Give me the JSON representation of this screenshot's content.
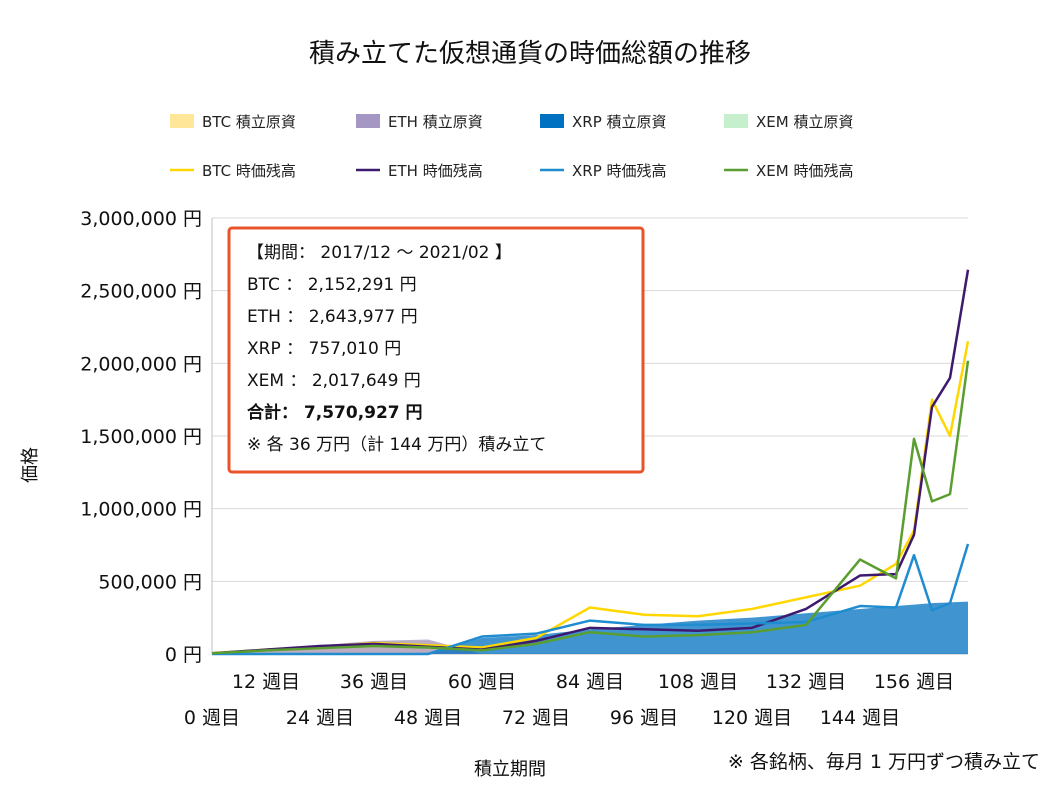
{
  "chart_data": {
    "type": "line",
    "title": "積み立てた仮想通貨の時価総額の推移",
    "xlabel": "積立期間",
    "ylabel": "価格",
    "ylim": [
      0,
      3000000
    ],
    "y_ticks": [
      "0 円",
      "500,000 円",
      "1,000,000 円",
      "1,500,000 円",
      "2,000,000 円",
      "2,500,000 円",
      "3,000,000 円"
    ],
    "x_ticks_top": [
      "12 週目",
      "36 週目",
      "60 週目",
      "84 週目",
      "108 週目",
      "132 週目",
      "156 週目"
    ],
    "x_ticks_bottom": [
      "0 週目",
      "24 週目",
      "48 週目",
      "72 週目",
      "96 週目",
      "120 週目",
      "144 週目"
    ],
    "legend_placement": "top",
    "grid": true,
    "x": [
      0,
      12,
      24,
      36,
      48,
      60,
      72,
      84,
      96,
      108,
      120,
      132,
      144,
      152,
      156,
      160,
      164,
      168
    ],
    "series": [
      {
        "name": "BTC 積立原資",
        "kind": "area",
        "color": "#ffe699",
        "values": [
          10000,
          30000,
          60000,
          90000,
          90000,
          0,
          0,
          0,
          0,
          0,
          0,
          0,
          0,
          0,
          0,
          0,
          0,
          0
        ]
      },
      {
        "name": "ETH 積立原資",
        "kind": "area",
        "color": "#a497c4",
        "values": [
          10000,
          30000,
          60000,
          90000,
          100000,
          0,
          0,
          0,
          0,
          0,
          0,
          0,
          0,
          0,
          0,
          0,
          0,
          0
        ]
      },
      {
        "name": "XRP 積立原資",
        "kind": "area",
        "color": "#0070c0",
        "values": [
          0,
          0,
          0,
          0,
          0,
          110000,
          130000,
          170000,
          200000,
          230000,
          250000,
          280000,
          310000,
          330000,
          340000,
          350000,
          355000,
          360000
        ]
      },
      {
        "name": "XEM 積立原資",
        "kind": "area",
        "color": "#c6efce",
        "values": [
          0,
          0,
          0,
          0,
          0,
          0,
          0,
          0,
          0,
          0,
          0,
          0,
          0,
          0,
          0,
          0,
          0,
          0
        ]
      },
      {
        "name": "BTC 時価残高",
        "kind": "line",
        "color": "#ffd700",
        "values": [
          5000,
          30000,
          50000,
          75000,
          60000,
          45000,
          110000,
          320000,
          270000,
          260000,
          310000,
          390000,
          470000,
          620000,
          850000,
          1750000,
          1500000,
          2152291
        ]
      },
      {
        "name": "ETH 時価残高",
        "kind": "line",
        "color": "#3d1a6e",
        "values": [
          5000,
          30000,
          55000,
          70000,
          50000,
          30000,
          90000,
          180000,
          170000,
          160000,
          180000,
          310000,
          540000,
          550000,
          820000,
          1700000,
          1900000,
          2643977
        ]
      },
      {
        "name": "XRP 時価残高",
        "kind": "line",
        "color": "#1f8ccf",
        "values": [
          0,
          0,
          0,
          0,
          0,
          120000,
          140000,
          230000,
          200000,
          200000,
          210000,
          220000,
          330000,
          320000,
          680000,
          300000,
          350000,
          757010
        ]
      },
      {
        "name": "XEM 時価残高",
        "kind": "line",
        "color": "#5a9e2f",
        "values": [
          5000,
          25000,
          40000,
          55000,
          45000,
          25000,
          70000,
          150000,
          120000,
          130000,
          150000,
          200000,
          650000,
          520000,
          1480000,
          1050000,
          1100000,
          2017649
        ]
      }
    ]
  },
  "legend": [
    {
      "label": "BTC  積立原資",
      "color": "#ffe699",
      "kind": "patch"
    },
    {
      "label": "ETH  積立原資",
      "color": "#a497c4",
      "kind": "patch"
    },
    {
      "label": "XRP  積立原資",
      "color": "#0070c0",
      "kind": "patch"
    },
    {
      "label": "XEM  積立原資",
      "color": "#c6efce",
      "kind": "patch"
    },
    {
      "label": "BTC  時価残高",
      "color": "#ffd700",
      "kind": "line"
    },
    {
      "label": "ETH  時価残高",
      "color": "#3d1a6e",
      "kind": "line"
    },
    {
      "label": "XRP  時価残高",
      "color": "#1f8ccf",
      "kind": "line"
    },
    {
      "label": "XEM  時価残高",
      "color": "#5a9e2f",
      "kind": "line"
    }
  ],
  "summary_box": {
    "border_color": "#e8532a",
    "period": "【期間： 2017/12 ～ 2021/02 】",
    "btc": "BTC  ： 2,152,291 円",
    "eth": "ETH  ： 2,643,977 円",
    "xrp": "XRP  ： 757,010 円",
    "xem": "XEM  ： 2,017,649 円",
    "total": "合計： 7,570,927 円",
    "note": "※ 各 36 万円（計 144 万円）積み立て"
  },
  "footnote": "※ 各銘柄、毎月 1 万円ずつ積み立て"
}
